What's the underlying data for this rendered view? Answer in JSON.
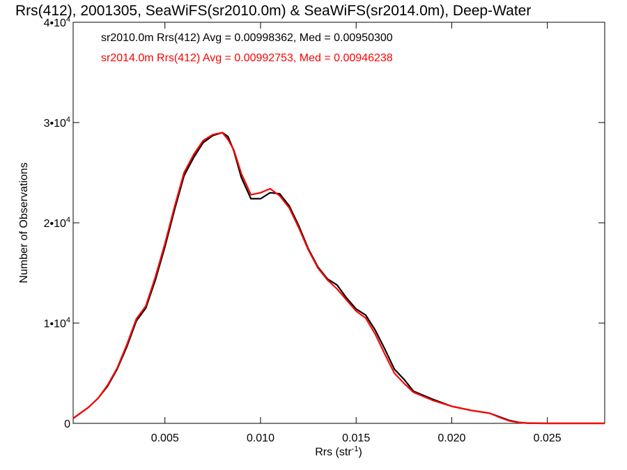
{
  "chart_data": {
    "type": "line",
    "title": "Rrs(412), 2001305, SeaWiFS(sr2010.0m) & SeaWiFS(sr2014.0m), Deep-Water",
    "xlabel_main": "Rrs (str",
    "xlabel_sup": "-1",
    "xlabel_tail": ")",
    "ylabel": "Number of Observations",
    "xlim": [
      0.0002,
      0.028
    ],
    "ylim": [
      0,
      40000
    ],
    "x_ticks": [
      {
        "value": 0.005,
        "label": "0.005"
      },
      {
        "value": 0.01,
        "label": "0.010"
      },
      {
        "value": 0.015,
        "label": "0.015"
      },
      {
        "value": 0.02,
        "label": "0.020"
      },
      {
        "value": 0.025,
        "label": "0.025"
      }
    ],
    "y_ticks": [
      {
        "value": 0,
        "label": "0",
        "sup": ""
      },
      {
        "value": 10000,
        "label": "1•10",
        "sup": "4"
      },
      {
        "value": 20000,
        "label": "2•10",
        "sup": "4"
      },
      {
        "value": 30000,
        "label": "3•10",
        "sup": "4"
      },
      {
        "value": 40000,
        "label": "4•10",
        "sup": "4"
      }
    ],
    "legend": [
      {
        "text": "sr2010.0m Rrs(412) Avg = 0.00998362, Med = 0.00950300",
        "color": "#000000"
      },
      {
        "text": "sr2014.0m Rrs(412) Avg = 0.00992753, Med = 0.00946238",
        "color": "#ff0000"
      }
    ],
    "series": [
      {
        "color": "#000000",
        "x": [
          0.0002,
          0.001,
          0.0015,
          0.002,
          0.0025,
          0.003,
          0.0035,
          0.004,
          0.0045,
          0.005,
          0.0055,
          0.006,
          0.0065,
          0.007,
          0.0075,
          0.008,
          0.0083,
          0.0086,
          0.009,
          0.0095,
          0.01,
          0.0105,
          0.011,
          0.0115,
          0.012,
          0.0125,
          0.013,
          0.0135,
          0.014,
          0.0145,
          0.015,
          0.0155,
          0.016,
          0.0165,
          0.017,
          0.0175,
          0.018,
          0.0185,
          0.019,
          0.02,
          0.021,
          0.022,
          0.0225,
          0.023,
          0.0235,
          0.024,
          0.025,
          0.026,
          0.028
        ],
        "y": [
          500,
          1600,
          2500,
          3700,
          5400,
          7600,
          10200,
          11500,
          14300,
          17600,
          21300,
          24700,
          26500,
          28000,
          28700,
          29000,
          28600,
          27200,
          24500,
          22400,
          22400,
          23000,
          22900,
          21700,
          19700,
          17400,
          15600,
          14400,
          13800,
          12500,
          11400,
          10800,
          9300,
          7400,
          5400,
          4400,
          3200,
          2800,
          2400,
          1700,
          1300,
          1000,
          650,
          300,
          100,
          20,
          0,
          0,
          0
        ]
      },
      {
        "color": "#ff0000",
        "x": [
          0.0002,
          0.001,
          0.0015,
          0.002,
          0.0025,
          0.003,
          0.0035,
          0.004,
          0.0045,
          0.005,
          0.0055,
          0.006,
          0.0065,
          0.007,
          0.0075,
          0.008,
          0.0083,
          0.0086,
          0.009,
          0.0095,
          0.01,
          0.0105,
          0.011,
          0.0115,
          0.012,
          0.0125,
          0.013,
          0.0135,
          0.014,
          0.0145,
          0.015,
          0.0155,
          0.016,
          0.0165,
          0.017,
          0.0175,
          0.018,
          0.0185,
          0.019,
          0.02,
          0.021,
          0.022,
          0.0225,
          0.023,
          0.0235,
          0.024,
          0.025,
          0.026,
          0.028
        ],
        "y": [
          500,
          1600,
          2500,
          3800,
          5500,
          7800,
          10400,
          11700,
          14600,
          17900,
          21600,
          25000,
          26800,
          28200,
          28800,
          29000,
          28300,
          27300,
          24900,
          22800,
          23000,
          23400,
          22700,
          21500,
          19500,
          17300,
          15500,
          14300,
          13400,
          12300,
          11200,
          10500,
          8900,
          6900,
          5000,
          4000,
          3100,
          2700,
          2300,
          1700,
          1300,
          1000,
          600,
          250,
          80,
          10,
          0,
          0,
          0
        ]
      }
    ]
  }
}
